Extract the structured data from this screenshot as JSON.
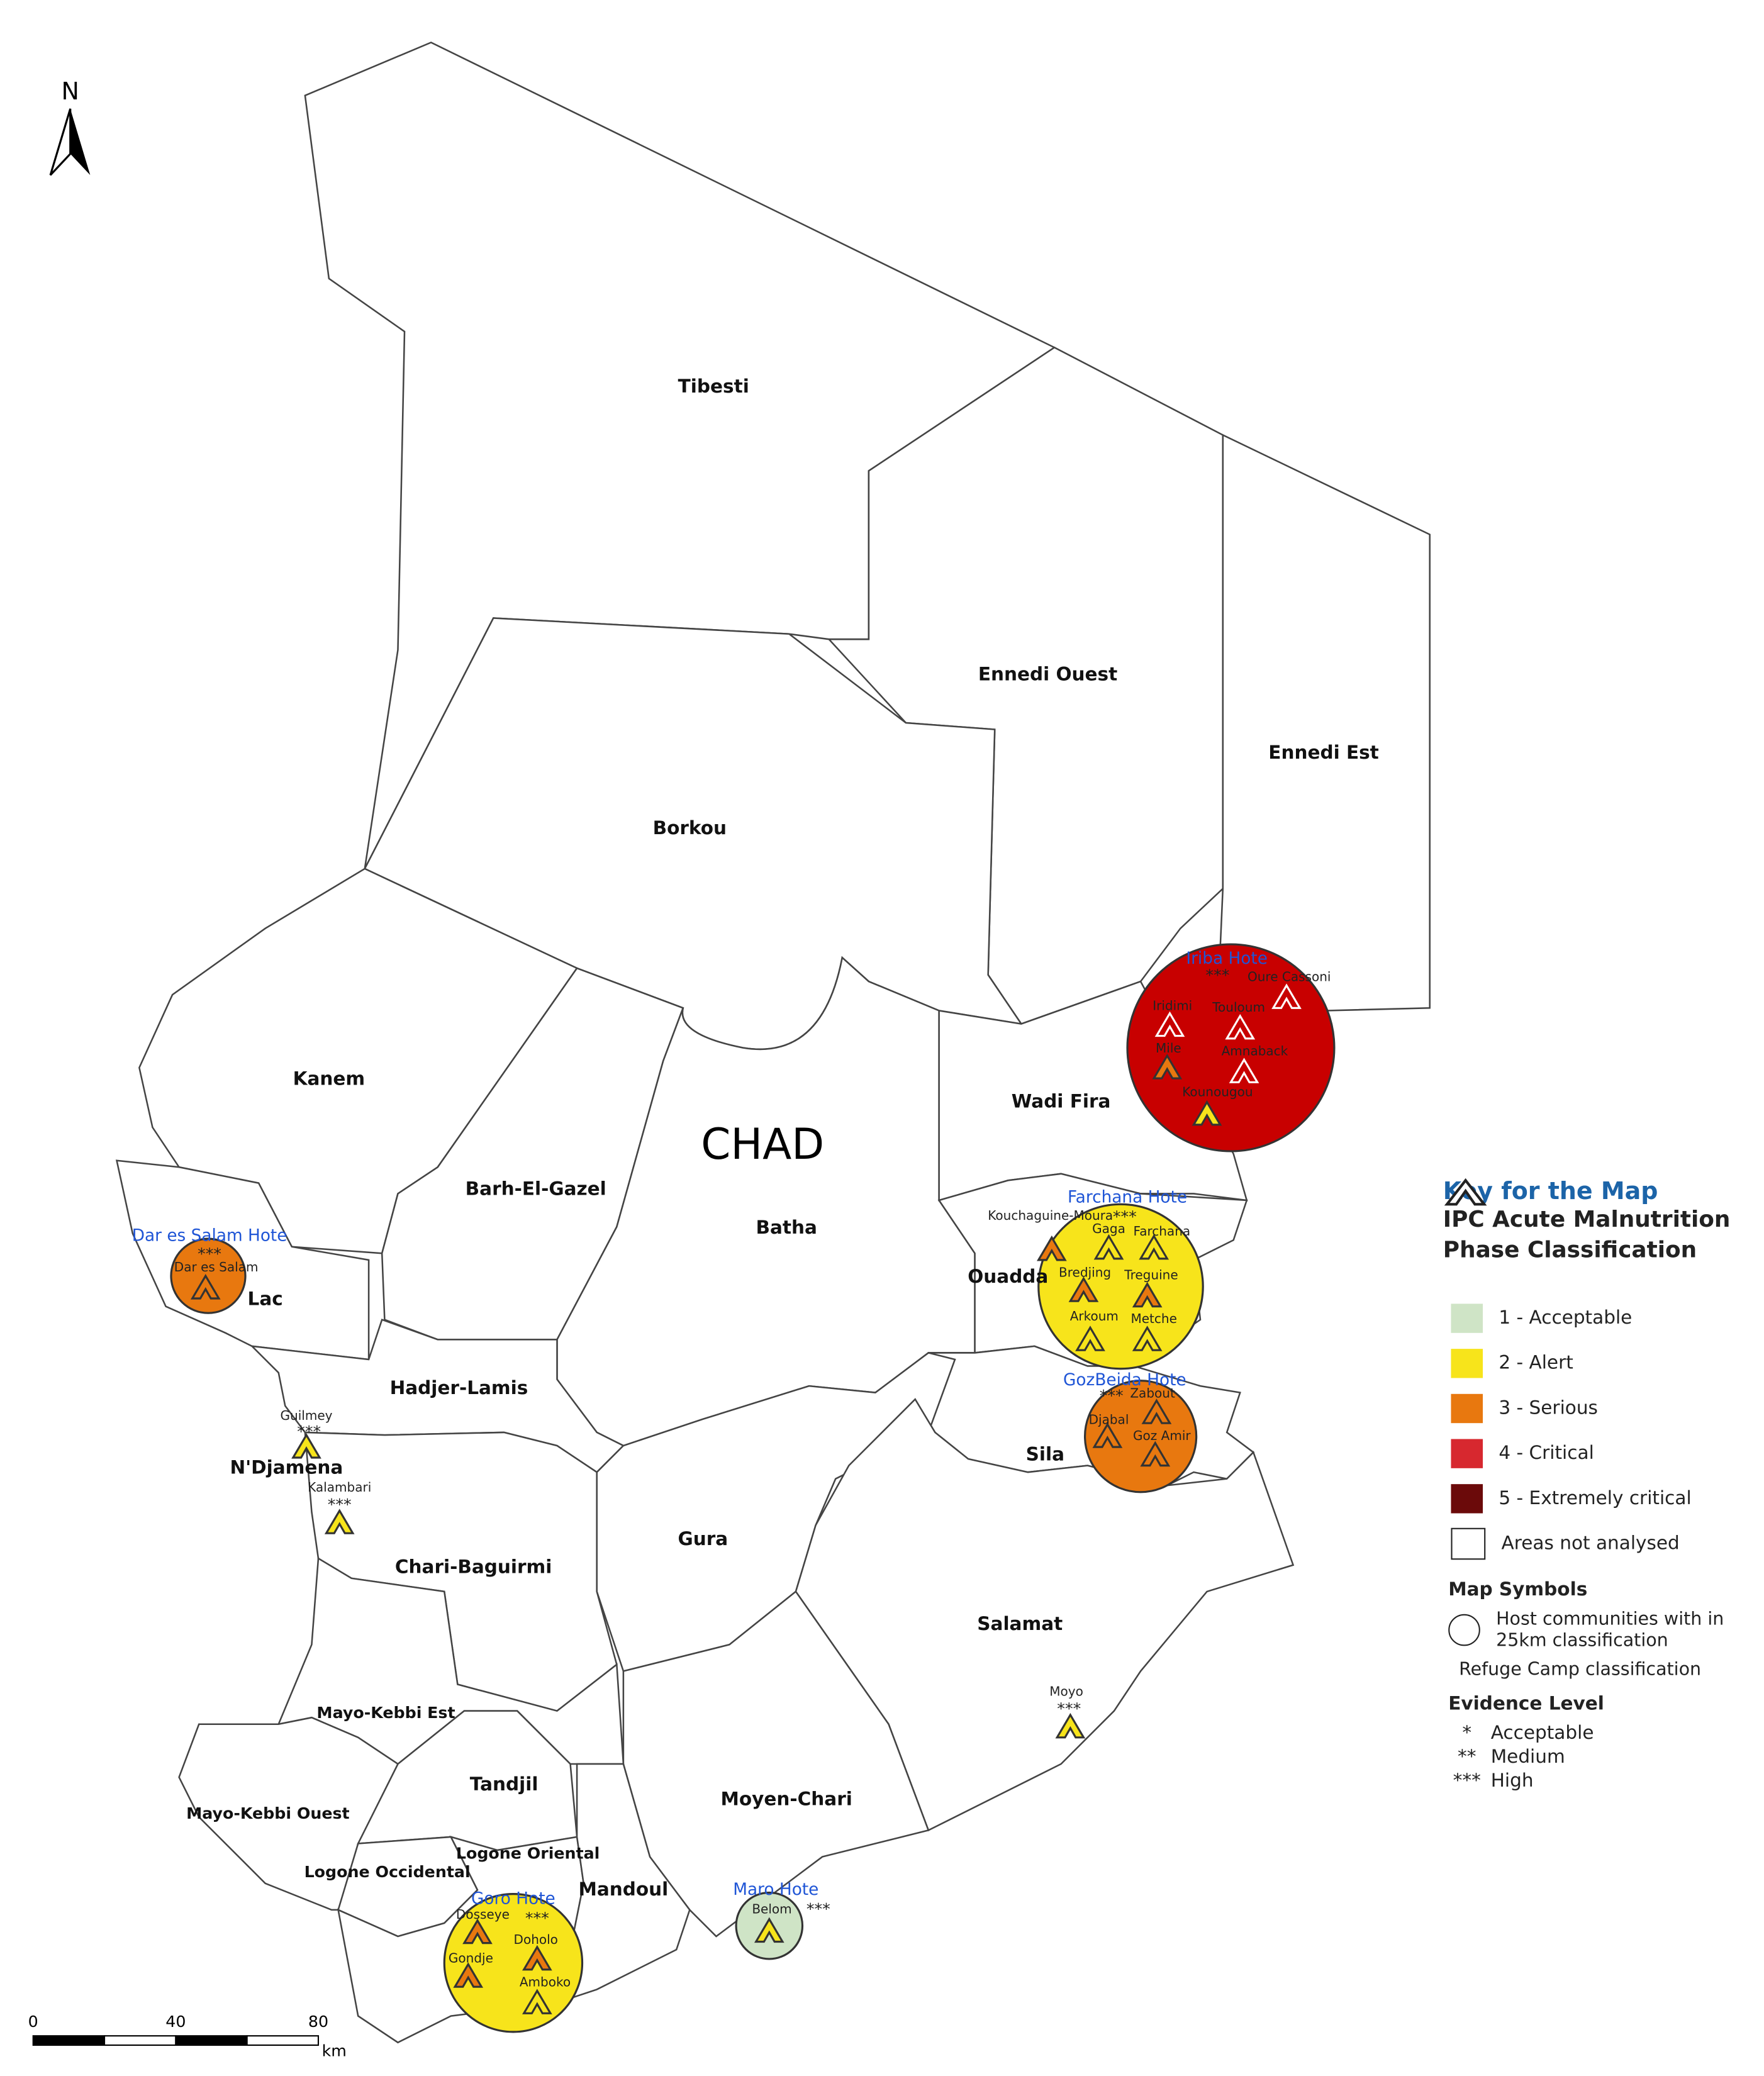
{
  "north": "N",
  "country": "CHAD",
  "regions": [
    "Tibesti",
    "Ennedi Ouest",
    "Ennedi Est",
    "Borkou",
    "Kanem",
    "Barh-El-Gazel",
    "Lac",
    "Batha",
    "Wadi Fira",
    "Ouadda",
    "Sila",
    "Hadjer-Lamis",
    "N'Djamena",
    "Chari-Baguirmi",
    "Gura",
    "Salamat",
    "Moyen-Chari",
    "Mayo-Kebbi Est",
    "Mayo-Kebbi Ouest",
    "Tandjil",
    "Logone Occidental",
    "Logone Oriental",
    "Mandoul"
  ],
  "hosts": [
    {
      "name": "Iriba Hote",
      "evidence": "***",
      "color": "#c80000"
    },
    {
      "name": "Farchana Hote",
      "evidence": "***",
      "color": "#f7e41b"
    },
    {
      "name": "GozBeida Hote",
      "evidence": "***",
      "color": "#e8780f"
    },
    {
      "name": "Dar es Salam Hote",
      "evidence": "***",
      "color": "#e8780f"
    },
    {
      "name": "Goro Hote",
      "evidence": "***",
      "color": "#f7e41b"
    },
    {
      "name": "Maro Hote",
      "evidence": "***",
      "color": "#cfe4c6"
    }
  ],
  "camps": [
    {
      "name": "Oure Cassoni",
      "color": "#c80000"
    },
    {
      "name": "Iridimi",
      "color": "#c80000"
    },
    {
      "name": "Touloum",
      "color": "#c80000"
    },
    {
      "name": "Amnaback",
      "color": "#c80000"
    },
    {
      "name": "Mile",
      "color": "#e8780f"
    },
    {
      "name": "Kounougou",
      "color": "#f7e41b"
    },
    {
      "name": "Kouchaguine-Moura",
      "color": "#e8780f"
    },
    {
      "name": "Gaga",
      "color": "#f7e41b"
    },
    {
      "name": "Farchana",
      "color": "#f7e41b"
    },
    {
      "name": "Bredjing",
      "color": "#e8780f"
    },
    {
      "name": "Treguine",
      "color": "#e8780f"
    },
    {
      "name": "Arkoum",
      "color": "#f7e41b"
    },
    {
      "name": "Metche",
      "color": "#f7e41b"
    },
    {
      "name": "Zabout",
      "color": "#e8780f"
    },
    {
      "name": "Djabal",
      "color": "#e8780f"
    },
    {
      "name": "Goz Amir",
      "color": "#e8780f"
    },
    {
      "name": "Dar es Salam",
      "color": "#e8780f"
    },
    {
      "name": "Guilmey",
      "color": "#f7e41b",
      "evidence": "***"
    },
    {
      "name": "Kalambari",
      "color": "#f7e41b",
      "evidence": "***"
    },
    {
      "name": "Moyo",
      "color": "#f7e41b",
      "evidence": "***"
    },
    {
      "name": "Belom",
      "color": "#f7e41b"
    },
    {
      "name": "Dosseye",
      "color": "#e8780f"
    },
    {
      "name": "Doholo",
      "color": "#e8780f"
    },
    {
      "name": "Gondje",
      "color": "#e8780f"
    },
    {
      "name": "Amboko",
      "color": "#f7e41b"
    }
  ],
  "legend": {
    "title": "Key for the Map",
    "subtitle": "IPC Acute Malnutrition Phase Classification",
    "phases": [
      {
        "label": "1 - Acceptable",
        "color": "#cfe4c6"
      },
      {
        "label": "2 - Alert",
        "color": "#f7e41b"
      },
      {
        "label": "3 - Serious",
        "color": "#e8780f"
      },
      {
        "label": "4 - Critical",
        "color": "#d7282f"
      },
      {
        "label": "5 - Extremely critical",
        "color": "#6b0a0a"
      }
    ],
    "not_analysed": "Areas not analysed",
    "symbols_title": "Map Symbols",
    "host_symbol": "Host communities with in 25km classification",
    "camp_symbol": "Refuge Camp classification",
    "evidence_title": "Evidence Level",
    "evidence": [
      {
        "stars": "*",
        "label": "Acceptable"
      },
      {
        "stars": "**",
        "label": "Medium"
      },
      {
        "stars": "***",
        "label": "High"
      }
    ]
  },
  "scale": {
    "ticks": [
      0,
      40,
      80
    ],
    "unit": "km"
  }
}
